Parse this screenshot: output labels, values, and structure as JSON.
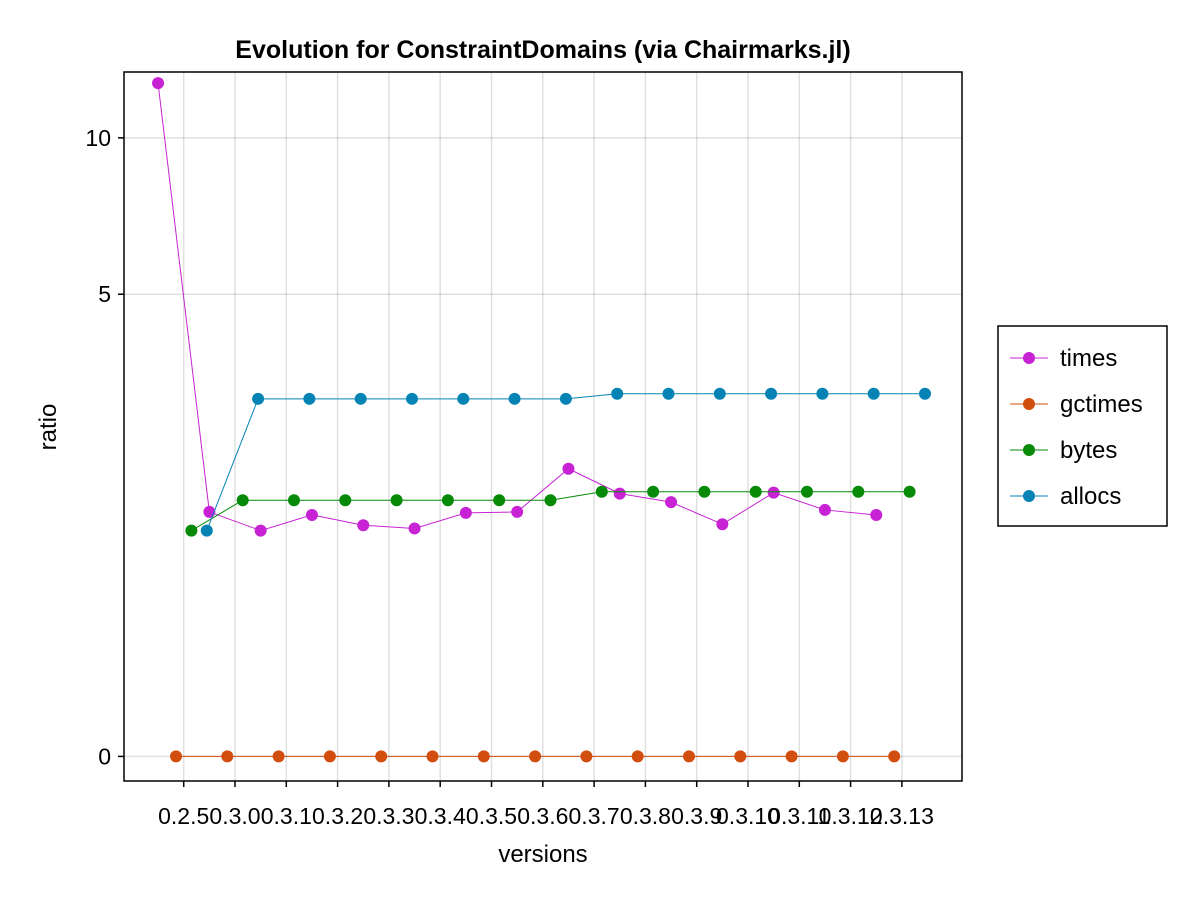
{
  "chart_data": {
    "type": "line",
    "title": "Evolution for ConstraintDomains (via Chairmarks.jl)",
    "xlabel": "versions",
    "ylabel": "ratio",
    "categories": [
      "0.2.5",
      "0.3.0",
      "0.3.1",
      "0.3.2",
      "0.3.3",
      "0.3.4",
      "0.3.5",
      "0.3.6",
      "0.3.7",
      "0.3.8",
      "0.3.9",
      "0.3.10",
      "0.3.11",
      "0.3.12",
      "0.3.13"
    ],
    "y_scale": "pseudolog",
    "y_ticks": [
      0,
      5,
      10
    ],
    "y_ticks_labels": [
      "0",
      "5",
      "10"
    ],
    "ylim": [
      -0.1,
      13.2
    ],
    "grid": true,
    "legend_position": "right",
    "series": [
      {
        "name": "times",
        "color": "#c723d5",
        "offset": -0.5,
        "values": [
          12.6,
          1.58,
          1.4,
          1.55,
          1.45,
          1.42,
          1.57,
          1.58,
          2.05,
          1.77,
          1.68,
          1.46,
          1.78,
          1.6,
          1.55
        ]
      },
      {
        "name": "gctimes",
        "color": "#d24e0f",
        "offset": -0.15,
        "values": [
          0,
          0,
          0,
          0,
          0,
          0,
          0,
          0,
          0,
          0,
          0,
          0,
          0,
          0,
          0
        ]
      },
      {
        "name": "bytes",
        "color": "#078a07",
        "offset": 0.15,
        "values": [
          1.4,
          1.7,
          1.7,
          1.7,
          1.7,
          1.7,
          1.7,
          1.7,
          1.79,
          1.79,
          1.79,
          1.79,
          1.79,
          1.79,
          1.79
        ]
      },
      {
        "name": "allocs",
        "color": "#0583b5",
        "offset": 0.45,
        "values": [
          1.4,
          3.0,
          3.0,
          3.0,
          3.0,
          3.0,
          3.0,
          3.0,
          3.08,
          3.08,
          3.08,
          3.08,
          3.08,
          3.08,
          3.08
        ]
      }
    ]
  }
}
